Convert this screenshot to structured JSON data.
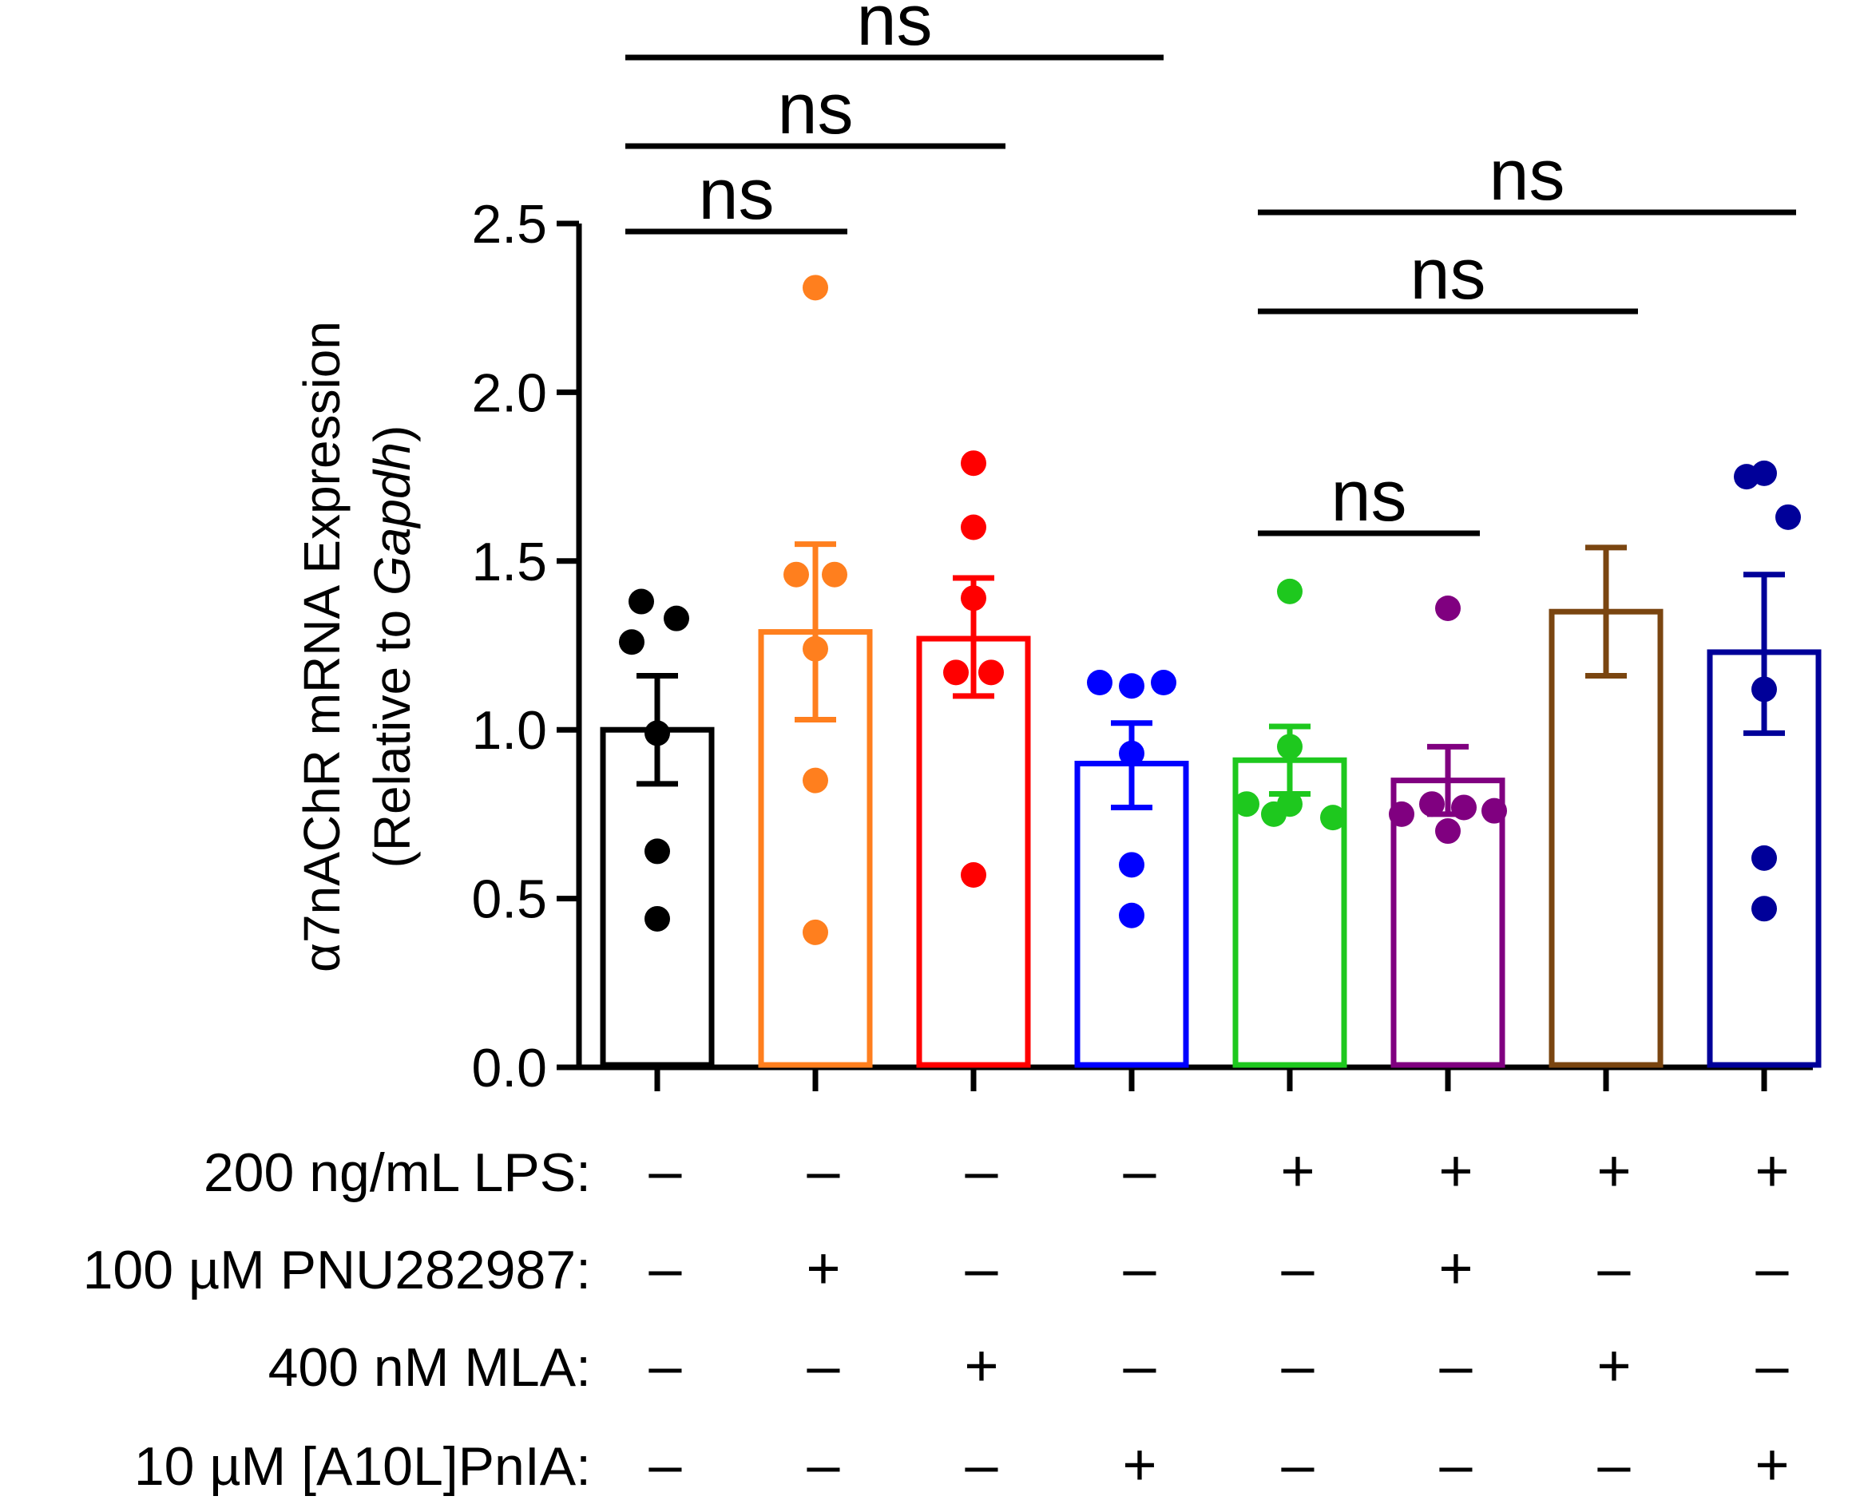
{
  "chart_data": {
    "type": "bar",
    "ylabel_main": "α7nAChR mRNA Expression",
    "ylabel_sub_prefix": "(Relative to ",
    "ylabel_sub_italic": "Gapdh",
    "ylabel_sub_suffix": ")",
    "ylim": [
      0,
      2.5
    ],
    "yticks": [
      "0.0",
      "0.5",
      "1.0",
      "1.5",
      "2.0",
      "2.5"
    ],
    "grid": false,
    "groups": [
      {
        "color": "#000000",
        "mean": 1.0,
        "sem_low": 0.84,
        "sem_high": 1.16,
        "points": [
          1.38,
          1.33,
          1.26,
          0.99,
          0.64,
          0.44
        ]
      },
      {
        "color": "#ff7f1e",
        "mean": 1.29,
        "sem_low": 1.03,
        "sem_high": 1.55,
        "points": [
          2.31,
          1.46,
          1.46,
          1.24,
          0.85,
          0.4
        ]
      },
      {
        "color": "#ff0000",
        "mean": 1.27,
        "sem_low": 1.1,
        "sem_high": 1.45,
        "points": [
          1.79,
          1.6,
          1.39,
          1.17,
          1.17,
          0.57
        ]
      },
      {
        "color": "#0000ff",
        "mean": 0.9,
        "sem_low": 0.77,
        "sem_high": 1.02,
        "points": [
          1.14,
          1.13,
          1.14,
          0.93,
          0.6,
          0.45
        ]
      },
      {
        "color": "#1ec81e",
        "mean": 0.91,
        "sem_low": 0.81,
        "sem_high": 1.01,
        "points": [
          1.41,
          0.95,
          0.78,
          0.78,
          0.74,
          0.75
        ]
      },
      {
        "color": "#800080",
        "mean": 0.85,
        "sem_low": 0.75,
        "sem_high": 0.95,
        "points": [
          1.36,
          0.78,
          0.75,
          0.7,
          0.76,
          0.77
        ]
      },
      {
        "color": "#7a4510",
        "mean": 1.35,
        "sem_low": 1.16,
        "sem_high": 1.54,
        "points": []
      },
      {
        "color": "#000099",
        "mean": 1.23,
        "sem_low": 0.99,
        "sem_high": 1.46,
        "points": [
          1.75,
          1.76,
          1.63,
          1.12,
          0.62,
          0.47
        ]
      }
    ],
    "significance": [
      {
        "label": "ns",
        "from": 1,
        "to": 2
      },
      {
        "label": "ns",
        "from": 1,
        "to": 3
      },
      {
        "label": "ns",
        "from": 1,
        "to": 4
      },
      {
        "label": "ns",
        "from": 5,
        "to": 6
      },
      {
        "label": "ns",
        "from": 5,
        "to": 7
      },
      {
        "label": "ns",
        "from": 5,
        "to": 8
      }
    ],
    "conditions": [
      {
        "label": "200 ng/mL LPS:",
        "signs": [
          "–",
          "–",
          "–",
          "–",
          "+",
          "+",
          "+",
          "+"
        ]
      },
      {
        "label": "100 µM PNU282987:",
        "signs": [
          "–",
          "+",
          "–",
          "–",
          "–",
          "+",
          "–",
          "–"
        ]
      },
      {
        "label": "400 nM MLA:",
        "signs": [
          "–",
          "–",
          "+",
          "–",
          "–",
          "–",
          "+",
          "–"
        ]
      },
      {
        "label": "10 µM [A10L]PnIA:",
        "signs": [
          "–",
          "–",
          "–",
          "+",
          "–",
          "–",
          "–",
          "+"
        ]
      }
    ]
  }
}
